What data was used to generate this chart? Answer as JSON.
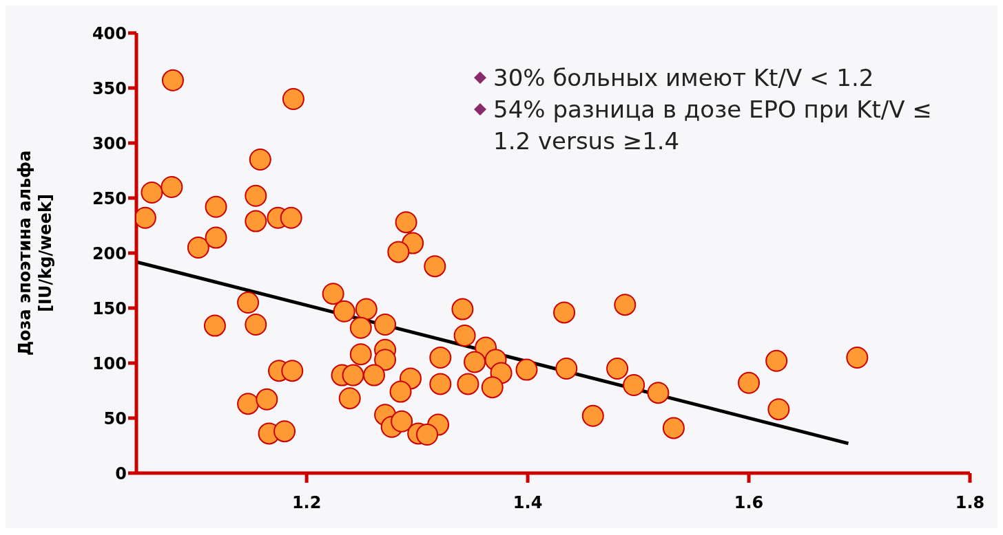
{
  "chart_data": {
    "type": "scatter",
    "ylabel": "Доза эпоэтина альфа\n[IU/kg/week]",
    "xlim": [
      1.046,
      1.8
    ],
    "xticks": [
      1.2,
      1.4,
      1.6,
      1.8
    ],
    "ylim": [
      0,
      400
    ],
    "yticks": [
      0,
      50,
      100,
      150,
      200,
      250,
      300,
      350,
      400
    ],
    "annotations": [
      "30% больных имеют Kt/V < 1.2",
      "54% разница в дозе EPO при Kt/V ≤ 1.2 versus ≥1.4"
    ],
    "series": [
      {
        "marker": "circle",
        "color": "#ff9933",
        "x": [
          1.054,
          1.06,
          1.079,
          1.078,
          1.102,
          1.118,
          1.118,
          1.117,
          1.147,
          1.147,
          1.154,
          1.154,
          1.154,
          1.158,
          1.164,
          1.166,
          1.175,
          1.174,
          1.18,
          1.187,
          1.186,
          1.188,
          1.29,
          1.296,
          1.283,
          1.316,
          1.224,
          1.234,
          1.254,
          1.249,
          1.271,
          1.341,
          1.343,
          1.362,
          1.433,
          1.488,
          1.249,
          1.271,
          1.271,
          1.321,
          1.352,
          1.371,
          1.376,
          1.399,
          1.435,
          1.481,
          1.496,
          1.518,
          1.232,
          1.242,
          1.261,
          1.294,
          1.321,
          1.346,
          1.368,
          1.285,
          1.239,
          1.271,
          1.277,
          1.286,
          1.319,
          1.301,
          1.309,
          1.459,
          1.532,
          1.6,
          1.625,
          1.627,
          1.698
        ],
        "values": [
          232,
          255,
          357,
          260,
          205,
          242,
          214,
          134,
          155,
          63,
          135,
          252,
          229,
          285,
          67,
          36,
          93,
          232,
          38,
          93,
          232,
          340,
          228,
          209,
          201,
          188,
          163,
          147,
          149,
          132,
          135,
          149,
          125,
          114,
          146,
          153,
          108,
          112,
          103,
          105,
          101,
          103,
          91,
          94,
          95,
          95,
          80,
          73,
          89,
          89,
          89,
          86,
          81,
          81,
          78,
          74,
          68,
          53,
          42,
          47,
          44,
          36,
          35,
          52,
          41,
          82,
          102,
          58,
          105
        ]
      },
      {
        "type": "line",
        "color": "#000000",
        "x": [
          1.046,
          1.69
        ],
        "values": [
          192,
          27
        ]
      }
    ]
  }
}
